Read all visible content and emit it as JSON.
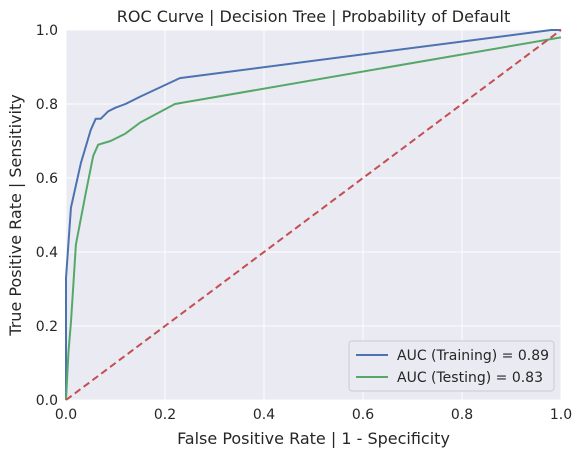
{
  "chart_data": {
    "type": "line",
    "title": "ROC Curve | Decision Tree | Probability of Default",
    "xlabel": "False Positive Rate | 1 - Specificity",
    "ylabel": "True Positive Rate | Sensitivity",
    "xlim": [
      0,
      1
    ],
    "ylim": [
      0,
      1
    ],
    "xticks": [
      "0.0",
      "0.2",
      "0.4",
      "0.6",
      "0.8",
      "1.0"
    ],
    "yticks": [
      "0.0",
      "0.2",
      "0.4",
      "0.6",
      "0.8",
      "1.0"
    ],
    "grid": true,
    "legend_position": "bottom-right",
    "colors": {
      "background": "#EAEAF2",
      "grid": "#FFFFFF"
    },
    "series": [
      {
        "name": "AUC (Training) = 0.89",
        "color": "#4C72B0",
        "style": "solid",
        "x": [
          0.0,
          0.0,
          0.01,
          0.02,
          0.03,
          0.05,
          0.06,
          0.07,
          0.085,
          0.1,
          0.12,
          0.15,
          0.23,
          0.98,
          1.0
        ],
        "y": [
          0.0,
          0.33,
          0.52,
          0.58,
          0.64,
          0.73,
          0.76,
          0.76,
          0.78,
          0.79,
          0.8,
          0.82,
          0.87,
          1.0,
          1.0
        ]
      },
      {
        "name": "AUC (Testing) = 0.83",
        "color": "#55A868",
        "style": "solid",
        "x": [
          0.0,
          0.005,
          0.01,
          0.02,
          0.04,
          0.055,
          0.065,
          0.09,
          0.12,
          0.15,
          0.22,
          1.0
        ],
        "y": [
          0.0,
          0.13,
          0.21,
          0.42,
          0.56,
          0.66,
          0.69,
          0.7,
          0.72,
          0.75,
          0.8,
          0.98
        ]
      },
      {
        "name": "",
        "color": "#C44E52",
        "style": "dashed",
        "x": [
          0.0,
          1.0
        ],
        "y": [
          0.0,
          1.0
        ]
      }
    ]
  }
}
